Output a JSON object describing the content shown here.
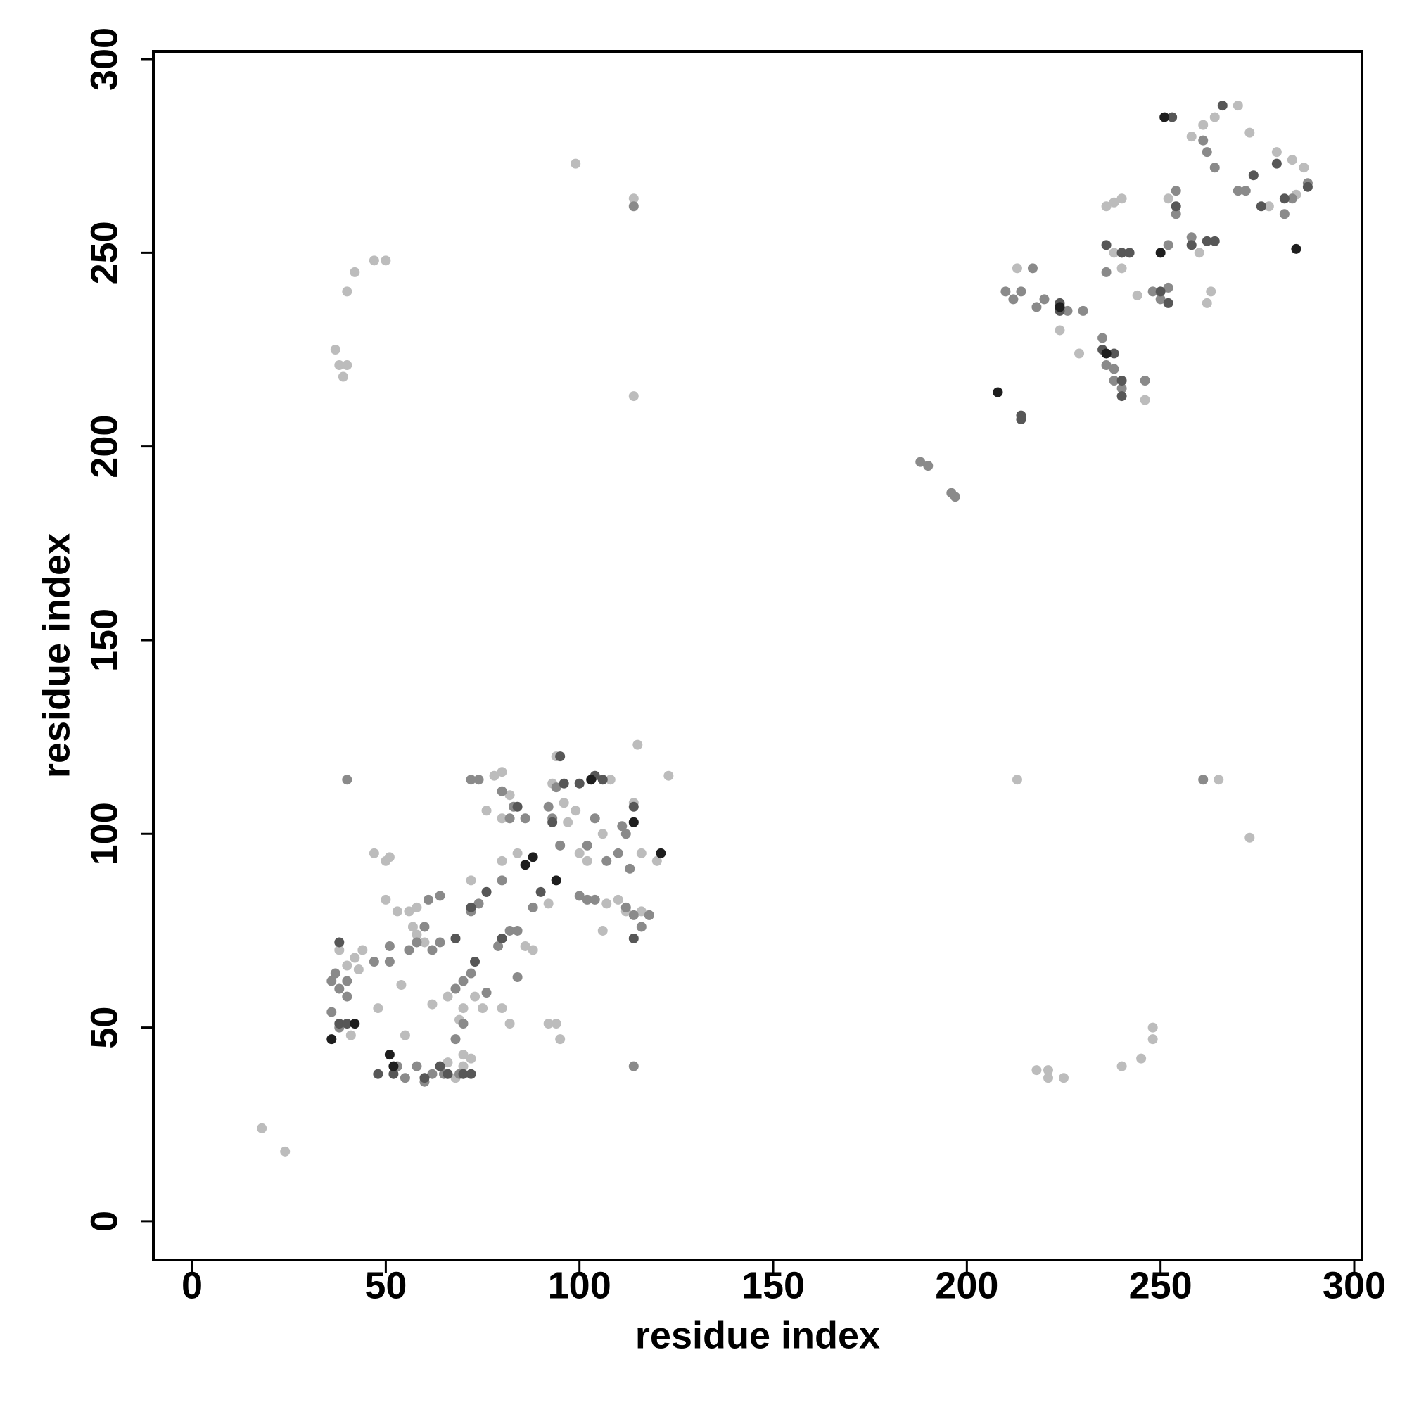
{
  "chart_data": {
    "type": "scatter",
    "xlabel": "residue index",
    "ylabel": "residue index",
    "xlim": [
      -10,
      302
    ],
    "ylim": [
      -10,
      302
    ],
    "xticks": [
      0,
      50,
      100,
      150,
      200,
      250,
      300
    ],
    "yticks": [
      0,
      50,
      100,
      150,
      200,
      250,
      300
    ],
    "series": [
      {
        "color": "#bcbcbc",
        "x": [
          18,
          24,
          37,
          38,
          40,
          39,
          40,
          42,
          47,
          50,
          99,
          114,
          114,
          47,
          50,
          51,
          48,
          44,
          42,
          40,
          43,
          38,
          41,
          50,
          53,
          56,
          57,
          58,
          60,
          54,
          55,
          58,
          68,
          70,
          70,
          72,
          66,
          72,
          76,
          78,
          80,
          80,
          82,
          80,
          82,
          84,
          80,
          86,
          88,
          94,
          93,
          96,
          97,
          99,
          92,
          94,
          95,
          92,
          100,
          102,
          106,
          107,
          106,
          110,
          112,
          114,
          116,
          118,
          116,
          120,
          115,
          123,
          108,
          73,
          75,
          70,
          66,
          69,
          62,
          213,
          265,
          273,
          218,
          221,
          221,
          225,
          240,
          245,
          248,
          248,
          224,
          229,
          236,
          240,
          238,
          246,
          244,
          252,
          258,
          261,
          264,
          270,
          273,
          280,
          284,
          287,
          278,
          285,
          262,
          263,
          260,
          213,
          238,
          240
        ],
        "y": [
          24,
          18,
          225,
          221,
          221,
          218,
          240,
          245,
          248,
          248,
          273,
          264,
          213,
          95,
          93,
          94,
          55,
          70,
          68,
          66,
          65,
          70,
          48,
          83,
          80,
          80,
          76,
          74,
          72,
          61,
          48,
          81,
          37,
          40,
          43,
          42,
          41,
          88,
          106,
          115,
          116,
          104,
          110,
          55,
          51,
          95,
          93,
          71,
          70,
          120,
          113,
          108,
          103,
          106,
          51,
          51,
          47,
          82,
          95,
          93,
          100,
          82,
          75,
          83,
          80,
          108,
          80,
          79,
          95,
          93,
          123,
          115,
          114,
          58,
          55,
          55,
          58,
          52,
          56,
          114,
          114,
          99,
          39,
          39,
          37,
          37,
          40,
          42,
          47,
          50,
          230,
          224,
          262,
          264,
          263,
          212,
          239,
          264,
          280,
          283,
          285,
          288,
          281,
          276,
          274,
          272,
          262,
          265,
          237,
          240,
          250,
          246,
          250,
          246
        ]
      },
      {
        "color": "#8a8a8a",
        "x": [
          40,
          114,
          114,
          36,
          37,
          38,
          40,
          40,
          36,
          38,
          47,
          51,
          51,
          56,
          58,
          60,
          62,
          64,
          61,
          64,
          53,
          55,
          58,
          62,
          60,
          65,
          69,
          68,
          70,
          68,
          70,
          72,
          76,
          79,
          72,
          74,
          76,
          72,
          74,
          80,
          82,
          83,
          86,
          80,
          82,
          84,
          88,
          84,
          92,
          93,
          95,
          94,
          100,
          102,
          104,
          102,
          107,
          104,
          110,
          111,
          112,
          113,
          112,
          114,
          116,
          118,
          210,
          214,
          212,
          218,
          220,
          226,
          230,
          217,
          235,
          236,
          238,
          238,
          240,
          246,
          248,
          250,
          252,
          254,
          254,
          252,
          258,
          261,
          262,
          264,
          270,
          272,
          284,
          282,
          288,
          188,
          190,
          196,
          197,
          261,
          240,
          236
        ],
        "y": [
          114,
          40,
          262,
          62,
          64,
          60,
          62,
          58,
          54,
          50,
          67,
          67,
          71,
          70,
          72,
          76,
          70,
          72,
          83,
          84,
          40,
          37,
          40,
          38,
          36,
          38,
          38,
          47,
          51,
          60,
          62,
          64,
          59,
          71,
          80,
          82,
          85,
          114,
          114,
          111,
          104,
          107,
          104,
          88,
          75,
          75,
          81,
          63,
          107,
          104,
          97,
          112,
          84,
          83,
          83,
          97,
          93,
          104,
          95,
          102,
          100,
          91,
          81,
          79,
          76,
          79,
          240,
          240,
          238,
          236,
          238,
          235,
          235,
          246,
          228,
          221,
          220,
          217,
          215,
          217,
          240,
          238,
          241,
          260,
          266,
          252,
          254,
          279,
          276,
          272,
          266,
          266,
          264,
          260,
          268,
          196,
          195,
          188,
          187,
          114,
          250,
          245
        ]
      },
      {
        "color": "#575757",
        "x": [
          38,
          38,
          40,
          48,
          52,
          60,
          66,
          70,
          72,
          64,
          68,
          73,
          76,
          72,
          80,
          84,
          90,
          93,
          95,
          96,
          100,
          104,
          106,
          114,
          114,
          114,
          235,
          238,
          240,
          240,
          236,
          240,
          242,
          208,
          214,
          214,
          224,
          224,
          250,
          252,
          266,
          264,
          262,
          258,
          254,
          274,
          280,
          288,
          276,
          253,
          282
        ],
        "y": [
          72,
          51,
          51,
          38,
          38,
          37,
          38,
          38,
          38,
          40,
          73,
          67,
          85,
          81,
          73,
          107,
          85,
          103,
          120,
          113,
          113,
          115,
          114,
          103,
          107,
          73,
          225,
          224,
          217,
          213,
          252,
          250,
          250,
          214,
          208,
          207,
          235,
          237,
          240,
          237,
          288,
          253,
          253,
          252,
          262,
          270,
          273,
          267,
          262,
          285,
          264
        ]
      },
      {
        "color": "#1e1e1e",
        "x": [
          36,
          42,
          51,
          52,
          88,
          94,
          103,
          114,
          121,
          86,
          251,
          285,
          236,
          250,
          224,
          208
        ],
        "y": [
          47,
          51,
          43,
          40,
          94,
          88,
          114,
          103,
          95,
          92,
          285,
          251,
          224,
          250,
          236,
          214
        ]
      }
    ]
  }
}
